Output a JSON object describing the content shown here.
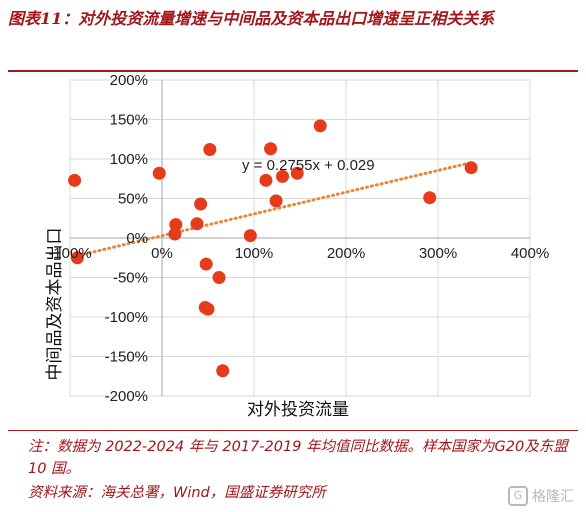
{
  "figure": {
    "title": "图表11：对外投资流量增速与中间品及资本品出口增速呈正相关关系",
    "note": "注：数据为 2022-2024 年与 2017-2019 年均值同比数据。样本国家为G20及东盟 10 国。",
    "source": "资料来源：海关总署，Wind，国盛证券研究所",
    "watermark": "格隆汇",
    "accent_color": "#a3161b"
  },
  "chart_data": {
    "type": "scatter",
    "title": "",
    "xlabel": "对外投资流量",
    "ylabel": "中间品及资本品出口",
    "xlim": [
      -100,
      400
    ],
    "ylim": [
      -200,
      200
    ],
    "x_ticks": [
      "-100%",
      "0%",
      "100%",
      "200%",
      "300%",
      "400%"
    ],
    "y_ticks": [
      "200%",
      "150%",
      "100%",
      "50%",
      "0%",
      "-50%",
      "-100%",
      "-150%",
      "-200%"
    ],
    "grid": true,
    "point_color": "#e63b1b",
    "trendline_color": "#e8863a",
    "trendline": {
      "slope": 0.2755,
      "intercept": 0.029,
      "label": "y = 0.2755x + 0.029"
    },
    "points": [
      {
        "x": -95,
        "y": 73
      },
      {
        "x": -92,
        "y": -25
      },
      {
        "x": -3,
        "y": 82
      },
      {
        "x": 14,
        "y": 5
      },
      {
        "x": 15,
        "y": 17
      },
      {
        "x": 38,
        "y": 18
      },
      {
        "x": 42,
        "y": 43
      },
      {
        "x": 47,
        "y": -88
      },
      {
        "x": 48,
        "y": -33
      },
      {
        "x": 50,
        "y": -90
      },
      {
        "x": 52,
        "y": 112
      },
      {
        "x": 62,
        "y": -50
      },
      {
        "x": 66,
        "y": -168
      },
      {
        "x": 96,
        "y": 3
      },
      {
        "x": 113,
        "y": 73
      },
      {
        "x": 118,
        "y": 113
      },
      {
        "x": 124,
        "y": 47
      },
      {
        "x": 131,
        "y": 78
      },
      {
        "x": 147,
        "y": 82
      },
      {
        "x": 172,
        "y": 142
      },
      {
        "x": 291,
        "y": 51
      },
      {
        "x": 336,
        "y": 89
      }
    ]
  }
}
